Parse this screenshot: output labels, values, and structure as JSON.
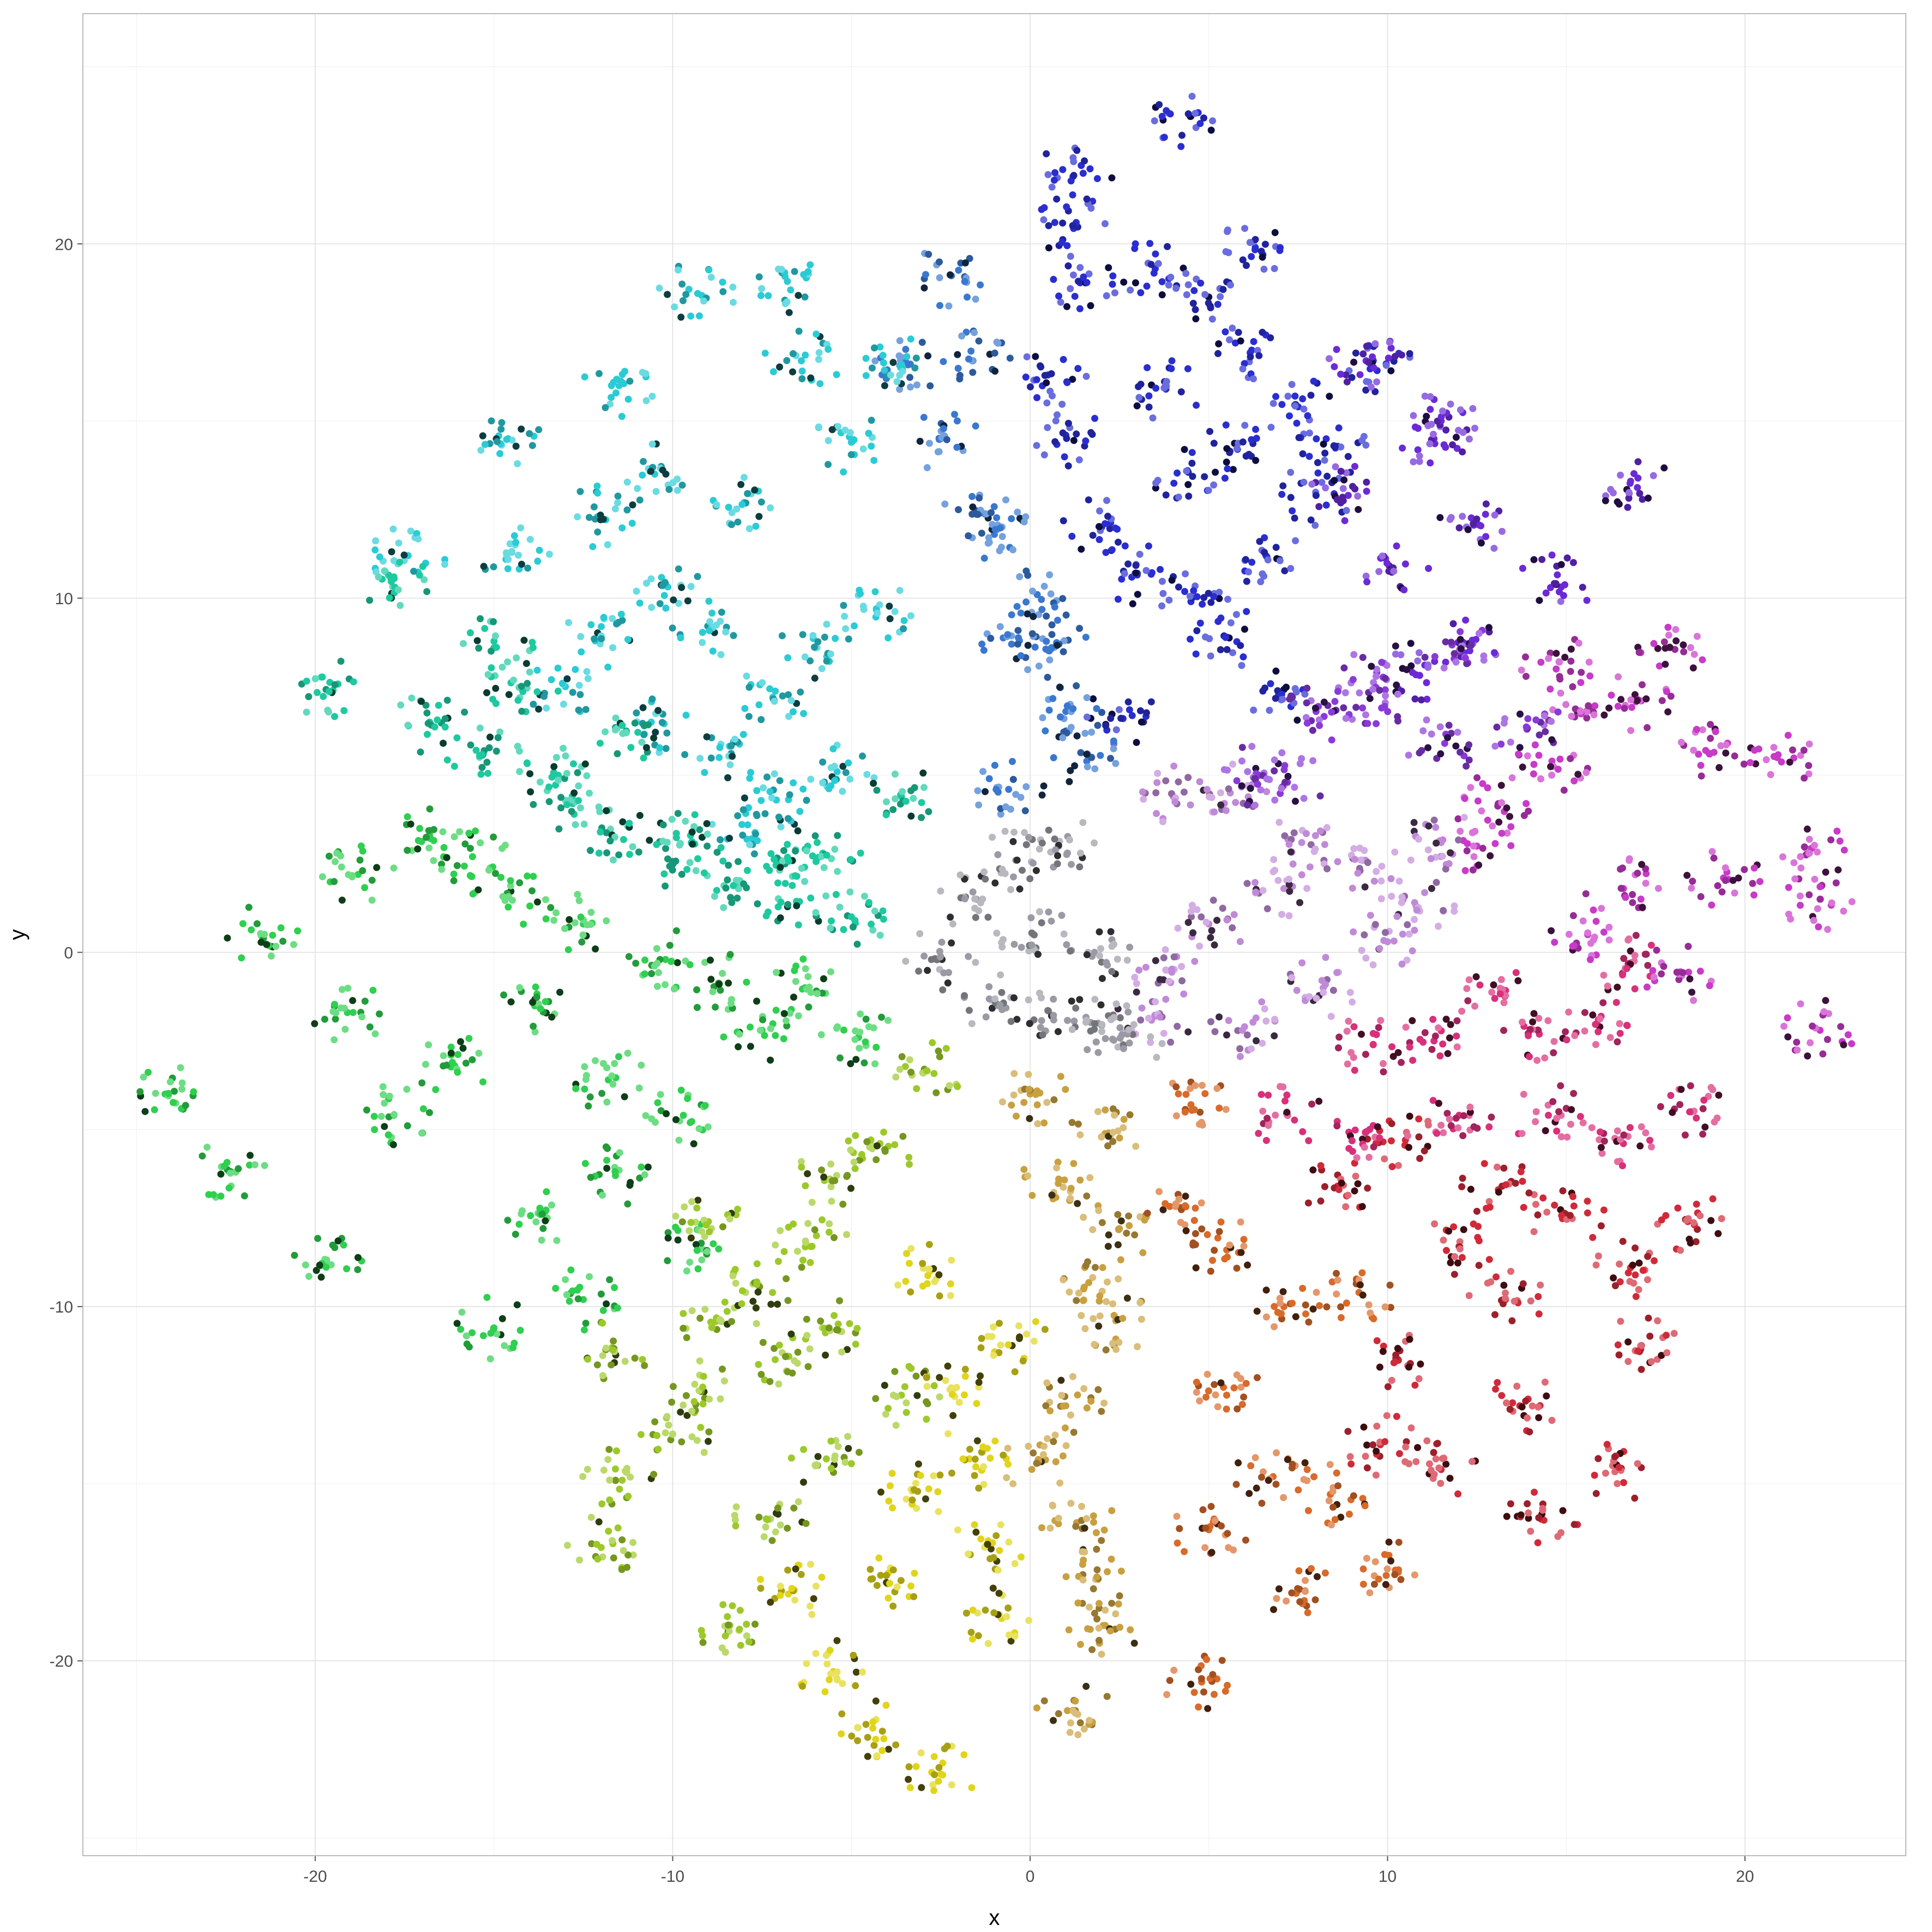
{
  "chart_data": {
    "type": "scatter",
    "title": "",
    "xlabel": "x",
    "ylabel": "y",
    "xlim": [
      -26.5,
      24.5
    ],
    "ylim": [
      -25.5,
      26.5
    ],
    "x_ticks": [
      -20,
      -10,
      0,
      10,
      20
    ],
    "y_ticks": [
      -20,
      -10,
      0,
      10,
      20
    ],
    "x_tick_labels": [
      "-20",
      "-10",
      "0",
      "10",
      "20"
    ],
    "y_tick_labels": [
      "-20",
      "-10",
      "0",
      "10",
      "20"
    ],
    "grid": true,
    "legend": "none",
    "color_encoding": "hue by angle around origin",
    "clusters": [
      {
        "name": "blue-upper",
        "color": "#2a2ed0",
        "x": [
          1.2,
          3.5,
          5.0,
          6.2,
          7.5,
          8.5,
          9.6,
          2.0,
          4.4,
          6.6,
          8.0,
          1.0,
          3.0,
          5.5,
          7.0,
          2.6,
          4.5,
          0.5,
          1.4,
          3.8,
          5.8,
          4.5,
          1.2,
          6.3
        ],
        "y": [
          20.5,
          19.3,
          18.5,
          17.0,
          15.4,
          14.3,
          16.7,
          12.0,
          13.6,
          11.2,
          12.9,
          14.6,
          10.7,
          8.9,
          7.2,
          6.6,
          9.9,
          16.3,
          18.9,
          15.9,
          14.2,
          23.6,
          21.9,
          19.9
        ]
      },
      {
        "name": "steel-blue-upper",
        "color": "#3a78d0",
        "x": [
          -2.2,
          -1.6,
          -2.5,
          -1.0,
          0.2,
          -0.3,
          1.0,
          -3.5,
          -1.4,
          0.6,
          1.6,
          -0.6
        ],
        "y": [
          19.1,
          16.7,
          14.5,
          11.8,
          10.1,
          8.8,
          6.8,
          16.6,
          12.4,
          8.6,
          5.6,
          4.6
        ]
      },
      {
        "name": "purple-upper-right",
        "color": "#6b2ad6",
        "x": [
          11.3,
          12.4,
          10.1,
          8.9,
          12.3,
          14.7,
          16.8,
          9.4,
          10.7,
          11.5
        ],
        "y": [
          14.5,
          12.1,
          10.8,
          12.9,
          8.7,
          10.4,
          13.3,
          16.7,
          7.9,
          15.0
        ]
      },
      {
        "name": "cyan-upper-left",
        "color": "#2acbd5",
        "x": [
          -14.6,
          -12.1,
          -11.5,
          -10.5,
          -9.3,
          -8.0,
          -6.4,
          -6.7,
          -5.0,
          -3.6,
          -14.5,
          -17.4,
          -10.2,
          -9.0,
          -7.2,
          -6.0,
          -4.3,
          -8.7,
          -7.1,
          -5.4,
          -12.0,
          -13.0,
          -10.6,
          -7.9
        ],
        "y": [
          14.5,
          12.3,
          16.0,
          13.5,
          18.6,
          12.7,
          16.7,
          18.7,
          14.4,
          16.6,
          11.3,
          11.2,
          10.4,
          9.2,
          7.2,
          8.6,
          9.7,
          5.5,
          4.3,
          5.1,
          8.9,
          7.5,
          6.5,
          3.6
        ]
      },
      {
        "name": "teal-left",
        "color": "#1ec9a0",
        "x": [
          -19.5,
          -16.8,
          -15.3,
          -14.2,
          -12.8,
          -11.7,
          -10.0,
          -8.2,
          -6.5,
          -4.9,
          -17.8,
          -15.0,
          -13.2,
          -11.3,
          -9.5,
          -7.0,
          -5.8,
          -3.6
        ],
        "y": [
          7.4,
          6.5,
          5.6,
          7.4,
          4.2,
          3.3,
          2.5,
          1.9,
          1.4,
          0.9,
          10.6,
          8.6,
          5.0,
          6.2,
          3.3,
          2.6,
          2.8,
          4.4
        ]
      },
      {
        "name": "green-left",
        "color": "#2fcf4f",
        "x": [
          -24.2,
          -22.4,
          -21.5,
          -18.8,
          -19.1,
          -16.8,
          -15.6,
          -14.6,
          -12.5,
          -10.2,
          -8.7,
          -6.3,
          -16.1,
          -13.8,
          -11.8,
          -9.7,
          -7.5,
          -17.8,
          -13.7,
          -11.6,
          -9.3,
          -19.7,
          -15.0,
          -12.5,
          -4.8
        ],
        "y": [
          -4.0,
          -6.2,
          0.5,
          2.2,
          -1.7,
          3.3,
          2.7,
          1.6,
          0.8,
          -0.2,
          -0.9,
          -1.0,
          -3.2,
          -1.5,
          -3.6,
          -4.6,
          -2.2,
          -4.6,
          -7.4,
          -6.3,
          -8.4,
          -8.7,
          -10.6,
          -9.8,
          -2.4
        ]
      },
      {
        "name": "yellow-green-bottom",
        "color": "#9cc92a",
        "x": [
          -11.7,
          -10.0,
          -8.7,
          -7.3,
          -6.1,
          -5.3,
          -4.2,
          -3.0,
          -9.2,
          -7.6,
          -5.7,
          -3.6,
          -8.4,
          -6.8,
          -12.0,
          -11.6,
          -9.0,
          -5.6
        ],
        "y": [
          -11.2,
          -13.6,
          -10.4,
          -16.0,
          -8.3,
          -10.7,
          -5.4,
          -3.4,
          -12.4,
          -9.4,
          -14.3,
          -12.5,
          -19.0,
          -11.4,
          -16.8,
          -14.9,
          -7.6,
          -6.4
        ]
      },
      {
        "name": "yellow-bottom",
        "color": "#e0d51a",
        "x": [
          -6.6,
          -5.5,
          -4.4,
          -3.3,
          -2.5,
          -1.7,
          -0.8,
          -4.0,
          -2.2,
          -0.5,
          -1.2,
          -2.8
        ],
        "y": [
          -18.0,
          -20.3,
          -21.9,
          -15.2,
          -23.2,
          -14.3,
          -18.8,
          -17.8,
          -12.3,
          -11.1,
          -16.7,
          -9.0
        ]
      },
      {
        "name": "tan-bottom",
        "color": "#c9a040",
        "x": [
          0.0,
          0.8,
          1.5,
          2.2,
          2.5,
          1.0,
          0.2,
          1.3,
          2.4,
          1.9,
          2.1,
          1.2
        ],
        "y": [
          -4.0,
          -6.4,
          -9.5,
          -5.1,
          -7.8,
          -12.8,
          -14.4,
          -16.1,
          -10.4,
          -17.7,
          -19.0,
          -21.4
        ]
      },
      {
        "name": "orange-bottom-right",
        "color": "#d86a2a",
        "x": [
          4.5,
          4.2,
          5.5,
          6.8,
          7.5,
          8.4,
          5.0,
          4.8,
          7.1,
          10.3,
          9.2,
          5.5
        ],
        "y": [
          -4.3,
          -7.2,
          -12.5,
          -14.8,
          -18.0,
          -15.3,
          -16.3,
          -20.6,
          -10.0,
          -17.5,
          -9.6,
          -8.4
        ]
      },
      {
        "name": "red-bottom-right",
        "color": "#d02a3a",
        "x": [
          8.6,
          10.5,
          12.0,
          13.3,
          15.0,
          16.8,
          18.4,
          16.5,
          13.7,
          11.5,
          14.3,
          17.1,
          9.8,
          13.1,
          10.3
        ],
        "y": [
          -6.6,
          -5.3,
          -8.3,
          -9.8,
          -7.4,
          -8.9,
          -7.6,
          -14.6,
          -12.8,
          -14.6,
          -16.0,
          -11.1,
          -13.9,
          -6.7,
          -11.5
        ]
      },
      {
        "name": "pink-right",
        "color": "#d8307a",
        "x": [
          7.2,
          9.5,
          12.0,
          14.5,
          16.6,
          18.5,
          14.2,
          15.9,
          11.3,
          13.0,
          9.6,
          16.8
        ],
        "y": [
          -4.6,
          -5.0,
          -4.6,
          -4.6,
          -5.4,
          -4.5,
          -2.2,
          -1.9,
          -2.5,
          -1.3,
          -2.6,
          -0.3
        ]
      },
      {
        "name": "magenta-right",
        "color": "#c83ac8",
        "x": [
          15.4,
          17.1,
          18.9,
          20.9,
          22.1,
          21.8,
          17.9,
          15.6,
          13.1,
          12.5,
          14.6,
          16.6,
          18.2,
          22.1,
          19.4,
          14.8
        ],
        "y": [
          6.8,
          7.1,
          5.7,
          5.5,
          1.5,
          2.8,
          8.6,
          0.5,
          4.2,
          3.0,
          5.4,
          1.8,
          -0.6,
          -2.2,
          2.1,
          8.2
        ]
      },
      {
        "name": "lilac-right",
        "color": "#c08ad8",
        "x": [
          4.0,
          5.6,
          7.6,
          9.3,
          10.8,
          3.8,
          6.0,
          8.2,
          10.0,
          11.5,
          5.0,
          7.1,
          3.5
        ],
        "y": [
          4.4,
          4.5,
          3.1,
          2.6,
          1.3,
          -0.5,
          -2.1,
          -1.0,
          0.3,
          3.1,
          0.8,
          1.8,
          -1.8
        ]
      },
      {
        "name": "violet-right",
        "color": "#8a3ad8",
        "x": [
          8.0,
          9.7,
          11.6,
          13.9,
          12.0,
          6.4,
          7.2,
          9.3
        ],
        "y": [
          6.8,
          7.9,
          5.9,
          6.3,
          8.5,
          5.0,
          4.8,
          6.9
        ]
      },
      {
        "name": "gray-center",
        "color": "#9a9aa4",
        "x": [
          -2.6,
          -1.5,
          -0.4,
          0.8,
          1.8,
          1.9,
          0.6,
          -0.9,
          2.6,
          0.1
        ],
        "y": [
          -0.2,
          1.5,
          2.6,
          3.0,
          0.0,
          -2.0,
          -1.8,
          -1.5,
          -2.6,
          0.5
        ]
      }
    ]
  }
}
